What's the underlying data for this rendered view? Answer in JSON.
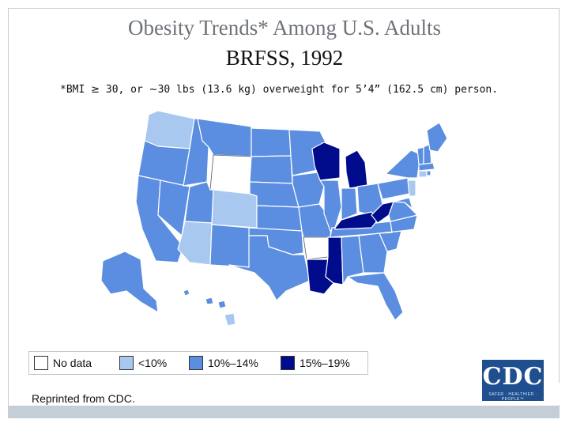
{
  "title": {
    "line1": "Obesity Trends* Among U.S. Adults",
    "line2": "BRFSS, 1992"
  },
  "footnote": {
    "mono_a": "*BMI ",
    "ge": "≥",
    "mono_b": " 30, or ",
    "approx": "~",
    "mono_c": "30 lbs (13.6 kg) overweight for 5’4” (162.5 cm) person."
  },
  "colors": {
    "no_data": "#ffffff",
    "lt10": "#a8c8f0",
    "10_14": "#5b8ee0",
    "15_19": "#000c8c",
    "border": "#ffffff",
    "outline": "#555555"
  },
  "legend": [
    {
      "label": "No data",
      "color": "#ffffff"
    },
    {
      "label": "<10%",
      "color": "#a8c8f0"
    },
    {
      "label": "10%–14%",
      "color": "#5b8ee0"
    },
    {
      "label": "15%–19%",
      "color": "#000c8c"
    }
  ],
  "state_categories": {
    "no_data": [
      "Wyoming",
      "Arkansas"
    ],
    "lt10": [
      "Washington",
      "Arizona",
      "Colorado",
      "Hawaii",
      "New Jersey",
      "Connecticut"
    ],
    "15_19": [
      "Wisconsin",
      "Michigan",
      "Kentucky",
      "West Virginia",
      "Mississippi",
      "Louisiana"
    ],
    "10_14": "all other states"
  },
  "credit": "Reprinted from CDC.",
  "logo": {
    "text": "CDC",
    "tagline": "SAFER · HEALTHIER · PEOPLE™"
  }
}
